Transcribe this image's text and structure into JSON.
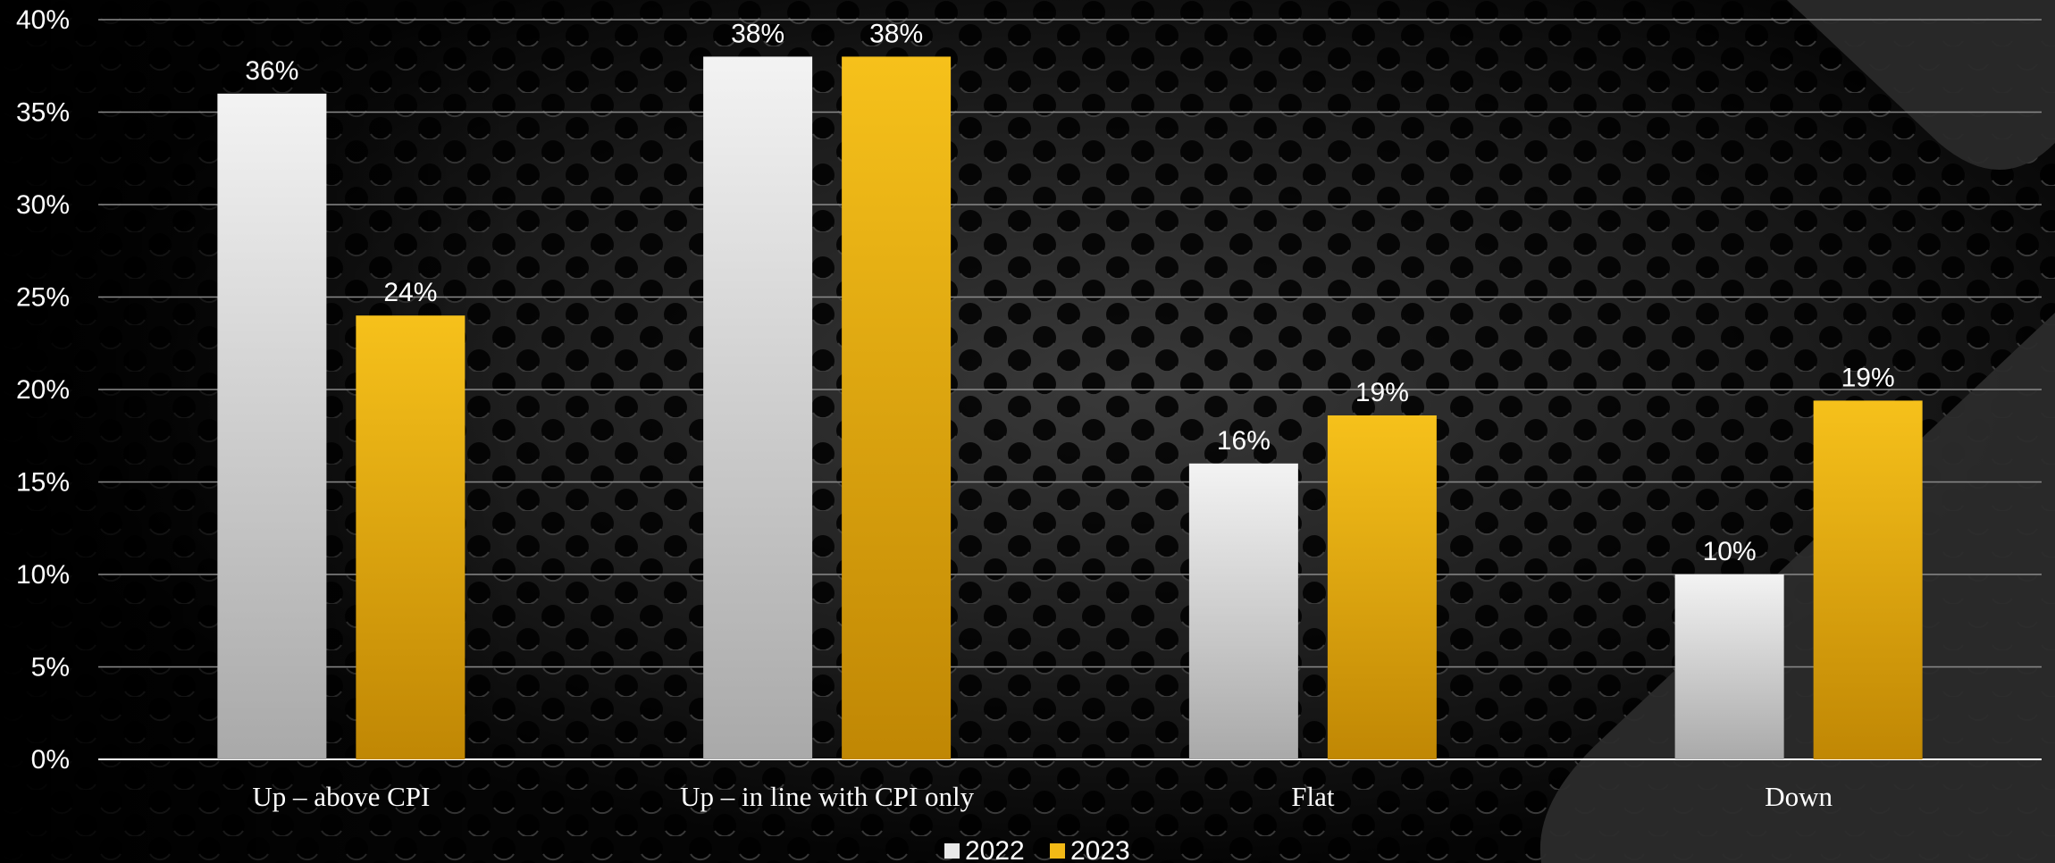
{
  "chart_data": {
    "type": "bar",
    "categories": [
      "Up – above CPI",
      "Up – in line with CPI only",
      "Flat",
      "Down"
    ],
    "series": [
      {
        "name": "2022",
        "values": [
          36,
          38,
          16,
          10
        ],
        "labels": [
          "36%",
          "38%",
          "16%",
          "10%"
        ],
        "color": "#e9e9e9"
      },
      {
        "name": "2023",
        "values": [
          24,
          38,
          18.6,
          19.4
        ],
        "labels": [
          "24%",
          "38%",
          "19%",
          "19%"
        ],
        "color": "#f2b916"
      }
    ],
    "y_ticks": [
      {
        "value": 0,
        "label": "0%"
      },
      {
        "value": 5,
        "label": "5%"
      },
      {
        "value": 10,
        "label": "10%"
      },
      {
        "value": 15,
        "label": "15%"
      },
      {
        "value": 20,
        "label": "20%"
      },
      {
        "value": 25,
        "label": "25%"
      },
      {
        "value": 30,
        "label": "30%"
      },
      {
        "value": 35,
        "label": "35%"
      },
      {
        "value": 40,
        "label": "40%"
      }
    ],
    "ylim": [
      0,
      40
    ],
    "grid": true,
    "legend": "bottom-center",
    "title": "",
    "xlabel": "",
    "ylabel": ""
  },
  "colors": {
    "background": "#050505",
    "gridline": "#8a8a8a",
    "axis": "#ffffff",
    "text": "#ffffff"
  }
}
